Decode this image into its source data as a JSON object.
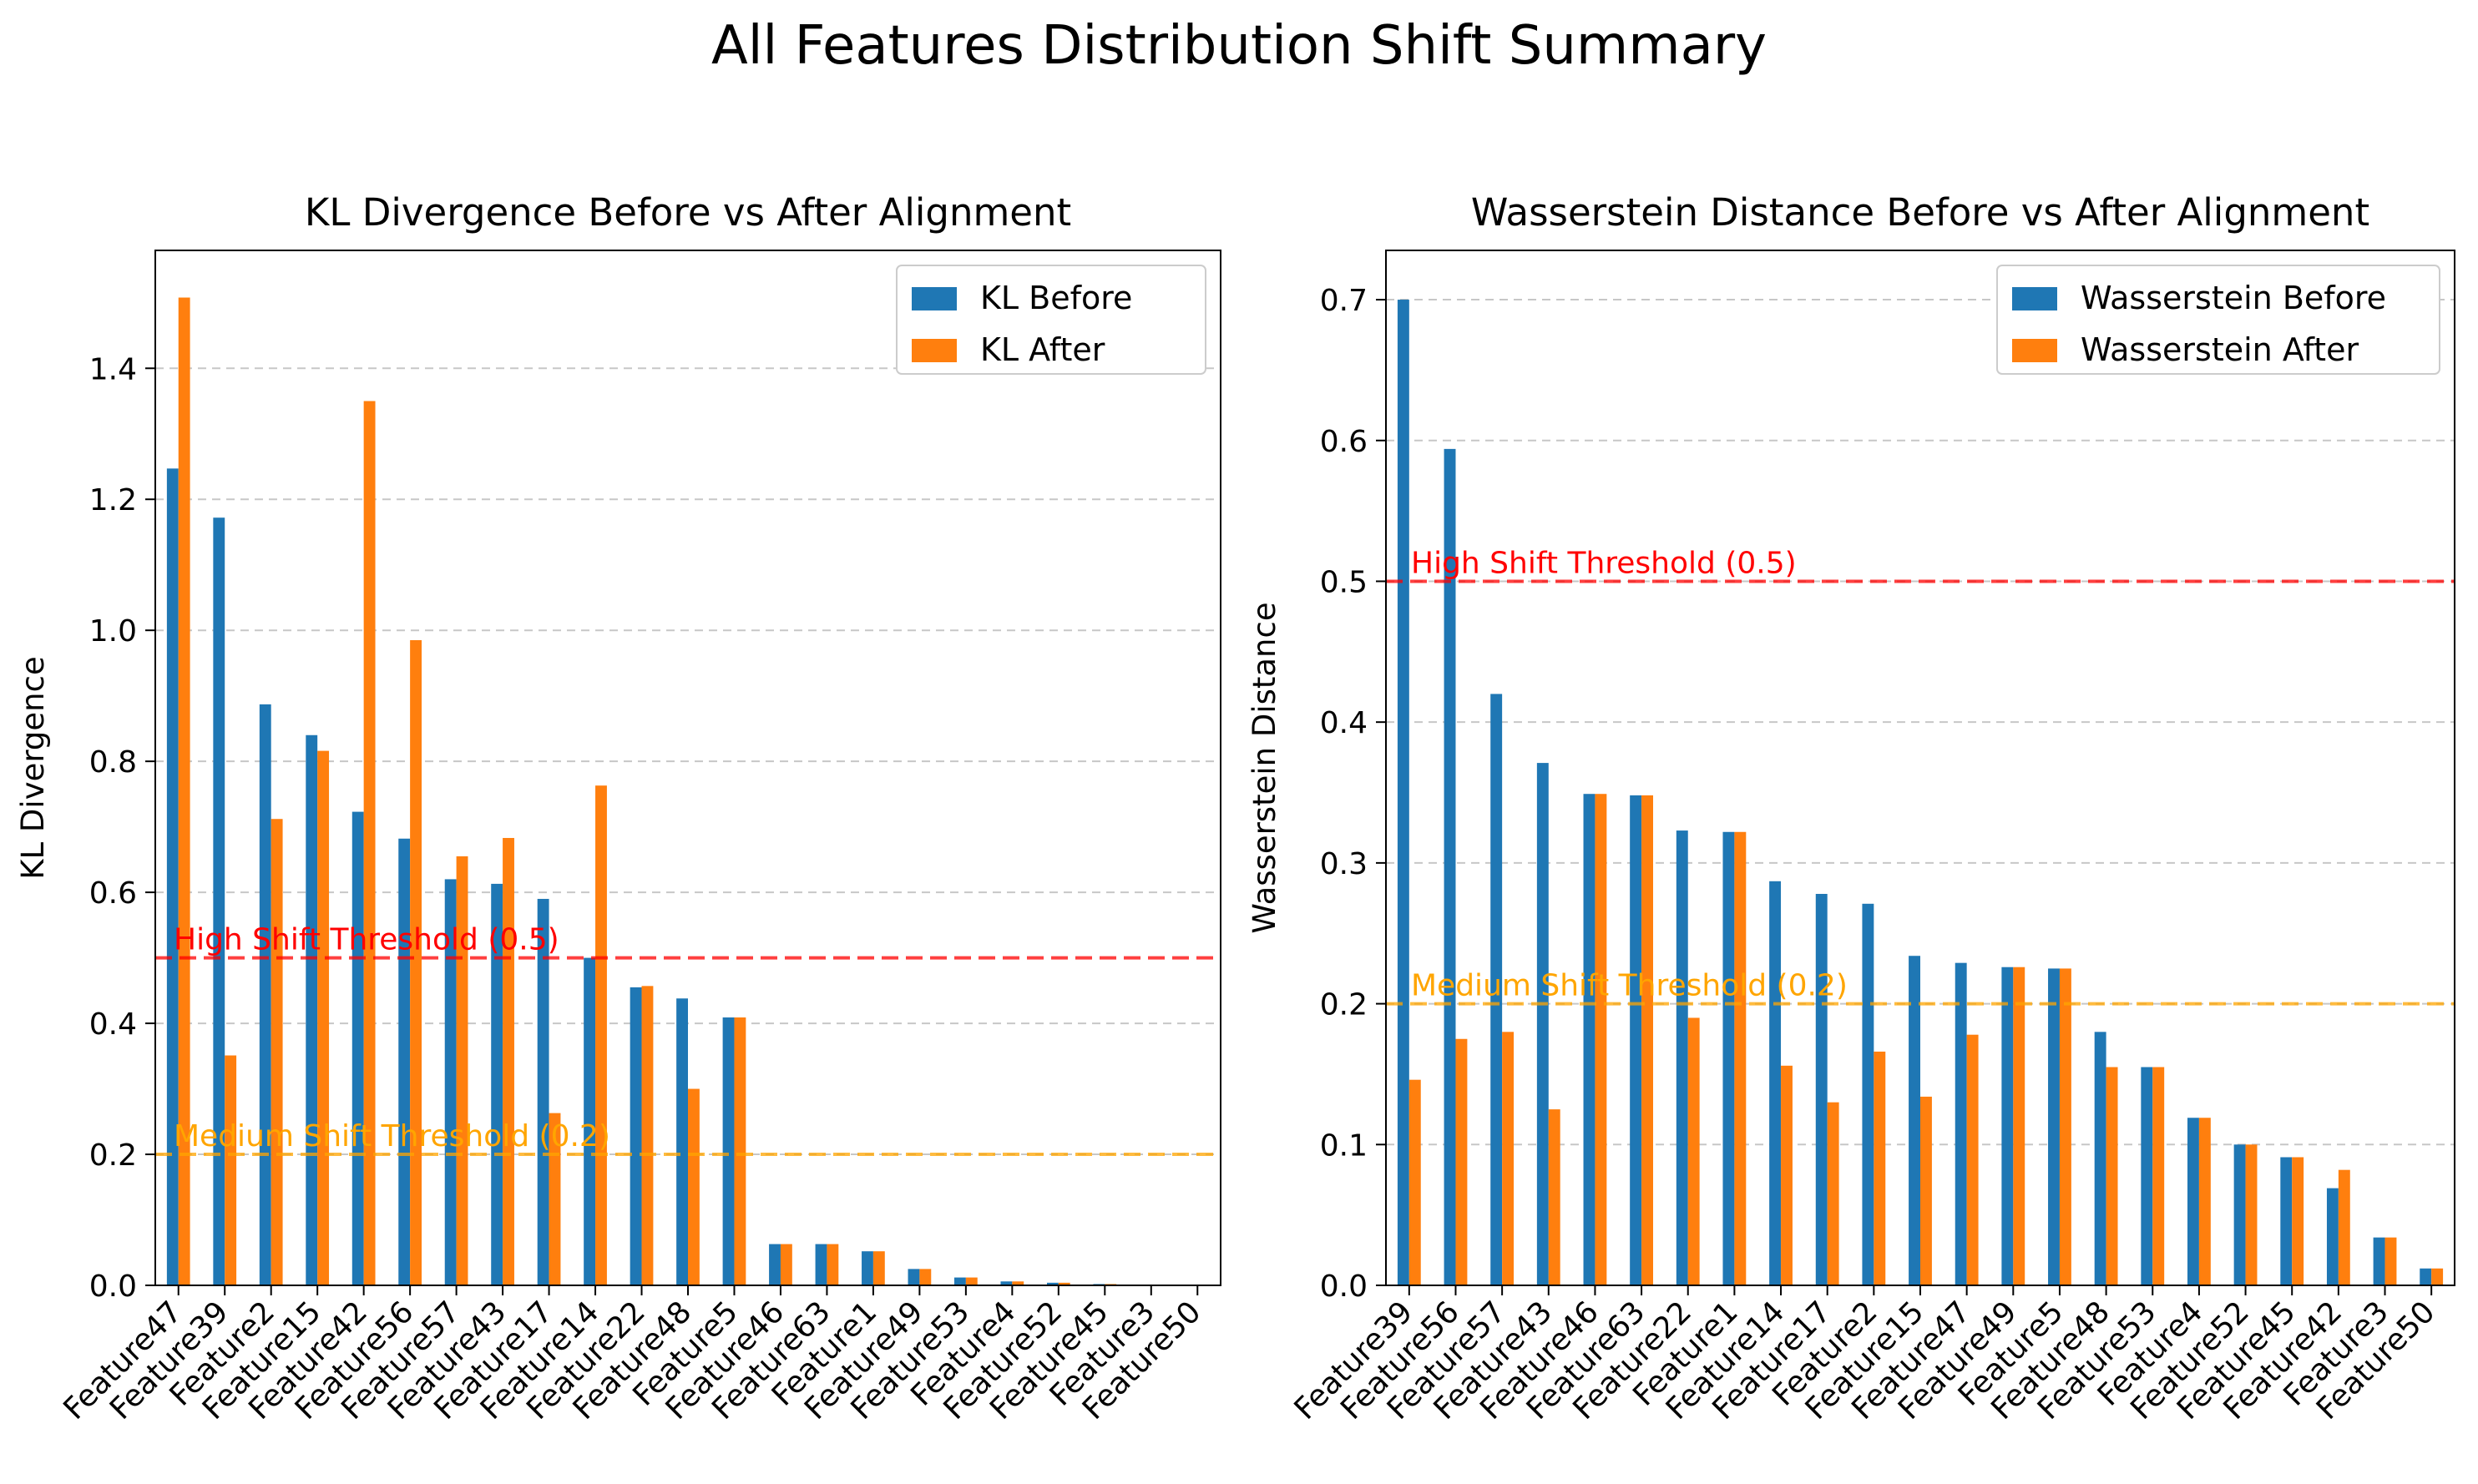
{
  "figure": {
    "title": "All Features Distribution Shift Summary"
  },
  "chart_data": [
    {
      "type": "bar",
      "title": "KL Divergence Before vs After Alignment",
      "xlabel": "",
      "ylabel": "KL Divergence",
      "ylim": [
        0,
        1.58
      ],
      "yticks": [
        0.0,
        0.2,
        0.4,
        0.6,
        0.8,
        1.0,
        1.2,
        1.4
      ],
      "ytick_labels": [
        "0.0",
        "0.2",
        "0.4",
        "0.6",
        "0.8",
        "1.0",
        "1.2",
        "1.4"
      ],
      "grid": "y-dashed",
      "legend_position": "top-right",
      "categories": [
        "Feature47",
        "Feature39",
        "Feature2",
        "Feature15",
        "Feature42",
        "Feature56",
        "Feature57",
        "Feature43",
        "Feature17",
        "Feature14",
        "Feature22",
        "Feature48",
        "Feature5",
        "Feature46",
        "Feature63",
        "Feature1",
        "Feature49",
        "Feature53",
        "Feature4",
        "Feature52",
        "Feature45",
        "Feature3",
        "Feature50"
      ],
      "series": [
        {
          "name": "KL Before",
          "color": "#1f77b4",
          "values": [
            1.247,
            1.172,
            0.887,
            0.84,
            0.723,
            0.682,
            0.62,
            0.613,
            0.59,
            0.5,
            0.455,
            0.438,
            0.409,
            0.063,
            0.063,
            0.052,
            0.025,
            0.012,
            0.006,
            0.004,
            0.002,
            0.001,
            0.001
          ]
        },
        {
          "name": "KL After",
          "color": "#ff7f0e",
          "values": [
            1.508,
            0.351,
            0.712,
            0.816,
            1.35,
            0.985,
            0.655,
            0.683,
            0.263,
            0.763,
            0.457,
            0.3,
            0.409,
            0.063,
            0.063,
            0.052,
            0.025,
            0.012,
            0.006,
            0.004,
            0.002,
            0.001,
            0.001
          ]
        }
      ],
      "thresholds": [
        {
          "value": 0.5,
          "label": "High Shift Threshold (0.5)",
          "color": "#ff0000"
        },
        {
          "value": 0.2,
          "label": "Medium Shift Threshold (0.2)",
          "color": "#ffa500"
        }
      ]
    },
    {
      "type": "bar",
      "title": "Wasserstein Distance Before vs After Alignment",
      "xlabel": "",
      "ylabel": "Wasserstein Distance",
      "ylim": [
        0,
        0.735
      ],
      "yticks": [
        0.0,
        0.1,
        0.2,
        0.3,
        0.4,
        0.5,
        0.6,
        0.7
      ],
      "ytick_labels": [
        "0.0",
        "0.1",
        "0.2",
        "0.3",
        "0.4",
        "0.5",
        "0.6",
        "0.7"
      ],
      "grid": "y-dashed",
      "legend_position": "top-right",
      "categories": [
        "Feature39",
        "Feature56",
        "Feature57",
        "Feature43",
        "Feature46",
        "Feature63",
        "Feature22",
        "Feature1",
        "Feature14",
        "Feature17",
        "Feature2",
        "Feature15",
        "Feature47",
        "Feature49",
        "Feature5",
        "Feature48",
        "Feature53",
        "Feature4",
        "Feature52",
        "Feature45",
        "Feature42",
        "Feature3",
        "Feature50"
      ],
      "series": [
        {
          "name": "Wasserstein Before",
          "color": "#1f77b4",
          "values": [
            0.7,
            0.594,
            0.42,
            0.371,
            0.349,
            0.348,
            0.323,
            0.322,
            0.287,
            0.278,
            0.271,
            0.234,
            0.229,
            0.226,
            0.225,
            0.18,
            0.155,
            0.119,
            0.1,
            0.091,
            0.069,
            0.034,
            0.012
          ]
        },
        {
          "name": "Wasserstein After",
          "color": "#ff7f0e",
          "values": [
            0.146,
            0.175,
            0.18,
            0.125,
            0.349,
            0.348,
            0.19,
            0.322,
            0.156,
            0.13,
            0.166,
            0.134,
            0.178,
            0.226,
            0.225,
            0.155,
            0.155,
            0.119,
            0.1,
            0.091,
            0.082,
            0.034,
            0.012
          ]
        }
      ],
      "thresholds": [
        {
          "value": 0.5,
          "label": "High Shift Threshold (0.5)",
          "color": "#ff0000"
        },
        {
          "value": 0.2,
          "label": "Medium Shift Threshold (0.2)",
          "color": "#ffa500"
        }
      ]
    }
  ]
}
